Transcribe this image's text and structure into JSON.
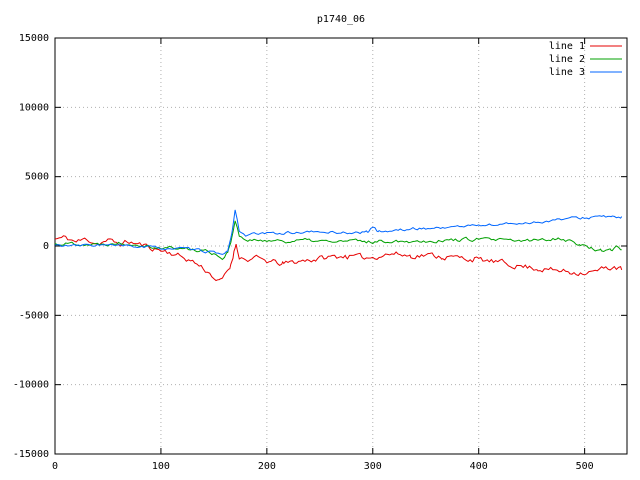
{
  "page": {
    "title": "p1740_06"
  },
  "chart_data": {
    "type": "line",
    "title": "p1740_06",
    "xlabel": "",
    "ylabel": "",
    "xlim": [
      0,
      540
    ],
    "ylim": [
      -15000,
      15000
    ],
    "xticks": [
      0,
      100,
      200,
      300,
      400,
      500
    ],
    "yticks": [
      -15000,
      -10000,
      -5000,
      0,
      5000,
      10000,
      15000
    ],
    "grid": true,
    "grid_color": "#b0b0b0",
    "border_color": "#000000",
    "legend_position": "top-right",
    "series": [
      {
        "name": "line 1",
        "color": "#e60000",
        "noise_amp": 350,
        "seed": 11,
        "keypoints": [
          [
            0,
            500
          ],
          [
            10,
            600
          ],
          [
            20,
            300
          ],
          [
            30,
            500
          ],
          [
            40,
            200
          ],
          [
            50,
            400
          ],
          [
            60,
            150
          ],
          [
            70,
            300
          ],
          [
            80,
            100
          ],
          [
            90,
            -100
          ],
          [
            100,
            -300
          ],
          [
            110,
            -500
          ],
          [
            120,
            -800
          ],
          [
            130,
            -1100
          ],
          [
            140,
            -1600
          ],
          [
            148,
            -2100
          ],
          [
            155,
            -2600
          ],
          [
            160,
            -2200
          ],
          [
            165,
            -1600
          ],
          [
            169,
            -400
          ],
          [
            171,
            200
          ],
          [
            174,
            -700
          ],
          [
            180,
            -1000
          ],
          [
            190,
            -900
          ],
          [
            200,
            -1100
          ],
          [
            215,
            -1300
          ],
          [
            230,
            -1100
          ],
          [
            245,
            -950
          ],
          [
            260,
            -800
          ],
          [
            275,
            -700
          ],
          [
            290,
            -850
          ],
          [
            300,
            -800
          ],
          [
            310,
            -600
          ],
          [
            320,
            -550
          ],
          [
            335,
            -700
          ],
          [
            350,
            -650
          ],
          [
            365,
            -750
          ],
          [
            380,
            -850
          ],
          [
            395,
            -950
          ],
          [
            410,
            -1100
          ],
          [
            425,
            -1250
          ],
          [
            440,
            -1450
          ],
          [
            455,
            -1600
          ],
          [
            470,
            -1750
          ],
          [
            485,
            -1850
          ],
          [
            500,
            -1900
          ],
          [
            510,
            -1850
          ],
          [
            520,
            -1600
          ],
          [
            528,
            -1500
          ],
          [
            535,
            -1700
          ]
        ]
      },
      {
        "name": "line 2",
        "color": "#00a000",
        "noise_amp": 230,
        "seed": 22,
        "keypoints": [
          [
            0,
            150
          ],
          [
            20,
            200
          ],
          [
            40,
            100
          ],
          [
            60,
            250
          ],
          [
            80,
            150
          ],
          [
            90,
            0
          ],
          [
            100,
            -150
          ],
          [
            110,
            -100
          ],
          [
            120,
            -200
          ],
          [
            130,
            -250
          ],
          [
            140,
            -300
          ],
          [
            150,
            -500
          ],
          [
            158,
            -900
          ],
          [
            163,
            -400
          ],
          [
            167,
            600
          ],
          [
            170,
            1800
          ],
          [
            174,
            700
          ],
          [
            180,
            400
          ],
          [
            190,
            350
          ],
          [
            200,
            450
          ],
          [
            220,
            350
          ],
          [
            240,
            400
          ],
          [
            260,
            300
          ],
          [
            280,
            350
          ],
          [
            300,
            300
          ],
          [
            320,
            400
          ],
          [
            340,
            350
          ],
          [
            360,
            400
          ],
          [
            380,
            450
          ],
          [
            400,
            500
          ],
          [
            420,
            400
          ],
          [
            440,
            350
          ],
          [
            460,
            450
          ],
          [
            475,
            600
          ],
          [
            485,
            400
          ],
          [
            495,
            100
          ],
          [
            505,
            -100
          ],
          [
            515,
            -300
          ],
          [
            525,
            -350
          ],
          [
            530,
            -100
          ],
          [
            535,
            -250
          ]
        ]
      },
      {
        "name": "line 3",
        "color": "#0066ff",
        "noise_amp": 170,
        "seed": 33,
        "keypoints": [
          [
            0,
            50
          ],
          [
            20,
            0
          ],
          [
            40,
            100
          ],
          [
            60,
            0
          ],
          [
            80,
            -50
          ],
          [
            100,
            -150
          ],
          [
            120,
            -200
          ],
          [
            140,
            -350
          ],
          [
            150,
            -450
          ],
          [
            158,
            -750
          ],
          [
            163,
            -300
          ],
          [
            167,
            900
          ],
          [
            170,
            2600
          ],
          [
            174,
            1100
          ],
          [
            180,
            800
          ],
          [
            190,
            850
          ],
          [
            200,
            900
          ],
          [
            220,
            950
          ],
          [
            240,
            1000
          ],
          [
            260,
            1000
          ],
          [
            280,
            950
          ],
          [
            295,
            1000
          ],
          [
            300,
            1400
          ],
          [
            305,
            1050
          ],
          [
            320,
            1100
          ],
          [
            340,
            1250
          ],
          [
            360,
            1300
          ],
          [
            380,
            1400
          ],
          [
            400,
            1500
          ],
          [
            420,
            1550
          ],
          [
            440,
            1650
          ],
          [
            460,
            1750
          ],
          [
            475,
            1900
          ],
          [
            490,
            2000
          ],
          [
            505,
            2050
          ],
          [
            515,
            2150
          ],
          [
            525,
            2050
          ],
          [
            535,
            2100
          ]
        ]
      }
    ]
  }
}
